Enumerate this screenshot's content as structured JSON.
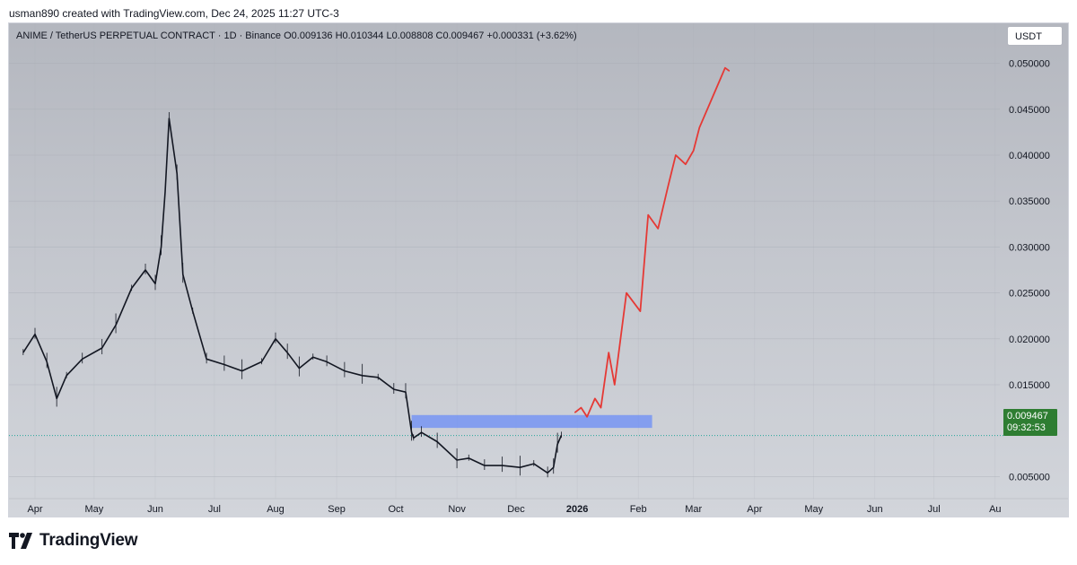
{
  "header": {
    "credit": "usman890 created with TradingView.com, Dec 24, 2025 11:27 UTC-3"
  },
  "chart": {
    "symbol_line": "ANIME / TetherUS PERPETUAL CONTRACT · 1D · Binance  O0.009136  H0.010344  L0.008808  C0.009467  +0.000331 (+3.62%)",
    "currency": "USDT",
    "last_price": "0.009467",
    "countdown": "09:32:53"
  },
  "chart_data": {
    "type": "line",
    "description_series": "daily candles approximated as close path",
    "x_axis": {
      "tick_labels": [
        "Apr",
        "May",
        "Jun",
        "Jul",
        "Aug",
        "Sep",
        "Oct",
        "Nov",
        "Dec",
        "2026",
        "Feb",
        "Mar",
        "Apr",
        "May",
        "Jun",
        "Jul",
        "Au"
      ]
    },
    "y_axis": {
      "tick_labels": [
        "0.050000",
        "0.045000",
        "0.040000",
        "0.035000",
        "0.030000",
        "0.025000",
        "0.020000",
        "0.015000",
        "0.005000"
      ],
      "ylim": [
        0.0025,
        0.0525
      ]
    },
    "series": [
      {
        "type": "price",
        "color": "#131722",
        "x": [
          "2025-03-26",
          "2025-04-01",
          "2025-04-07",
          "2025-04-12",
          "2025-04-17",
          "2025-04-25",
          "2025-05-05",
          "2025-05-12",
          "2025-05-20",
          "2025-05-27",
          "2025-06-01",
          "2025-06-04",
          "2025-06-06",
          "2025-06-08",
          "2025-06-12",
          "2025-06-15",
          "2025-06-20",
          "2025-06-27",
          "2025-07-06",
          "2025-07-15",
          "2025-07-25",
          "2025-08-01",
          "2025-08-07",
          "2025-08-13",
          "2025-08-20",
          "2025-08-27",
          "2025-09-05",
          "2025-09-14",
          "2025-09-22",
          "2025-09-30",
          "2025-10-06",
          "2025-10-09",
          "2025-10-10",
          "2025-10-14",
          "2025-10-22",
          "2025-11-01",
          "2025-11-07",
          "2025-11-15",
          "2025-11-24",
          "2025-12-03",
          "2025-12-10",
          "2025-12-17",
          "2025-12-20",
          "2025-12-22",
          "2025-12-24"
        ],
        "y": [
          0.0185,
          0.0205,
          0.0175,
          0.0135,
          0.016,
          0.0178,
          0.019,
          0.0215,
          0.0255,
          0.0275,
          0.026,
          0.03,
          0.036,
          0.044,
          0.038,
          0.027,
          0.023,
          0.0178,
          0.0172,
          0.0165,
          0.0175,
          0.02,
          0.0185,
          0.0168,
          0.018,
          0.0175,
          0.0165,
          0.016,
          0.0158,
          0.0145,
          0.0142,
          0.0098,
          0.0092,
          0.0098,
          0.0088,
          0.0068,
          0.007,
          0.0062,
          0.0062,
          0.006,
          0.0064,
          0.0054,
          0.006,
          0.0085,
          0.0095
        ]
      },
      {
        "type": "projection-drawing",
        "color": "#e53935",
        "x": [
          "2025-12-31",
          "2026-01-03",
          "2026-01-06",
          "2026-01-10",
          "2026-01-13",
          "2026-01-17",
          "2026-01-20",
          "2026-01-26",
          "2026-02-02",
          "2026-02-06",
          "2026-02-11",
          "2026-02-16",
          "2026-02-20",
          "2026-02-25",
          "2026-03-01",
          "2026-03-04",
          "2026-03-10",
          "2026-03-14",
          "2026-03-17",
          "2026-03-19"
        ],
        "y": [
          0.012,
          0.0125,
          0.0115,
          0.0135,
          0.0125,
          0.0185,
          0.015,
          0.025,
          0.023,
          0.0335,
          0.032,
          0.0365,
          0.04,
          0.039,
          0.0405,
          0.043,
          0.046,
          0.048,
          0.0495,
          0.0492
        ]
      }
    ],
    "zone": {
      "x": [
        "2025-10-09",
        "2026-02-08"
      ],
      "y": [
        0.0103,
        0.0117
      ],
      "color": "#6b8ef7"
    },
    "current_price_line": 0.009467,
    "grid": true,
    "legend": "none"
  },
  "footer": {
    "brand": "TradingView"
  }
}
